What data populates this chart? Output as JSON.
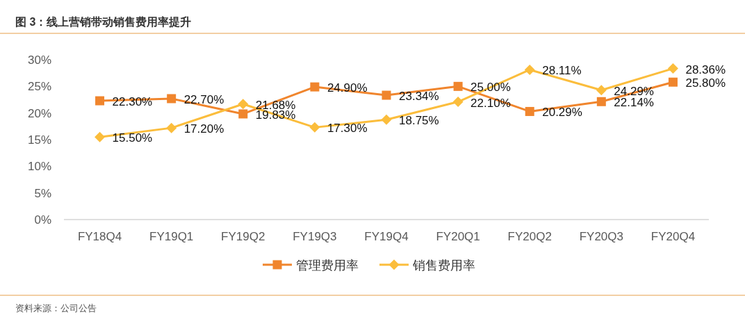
{
  "chart_data": {
    "type": "line",
    "title": "图 3：线上营销带动销售费用率提升",
    "categories": [
      "FY18Q4",
      "FY19Q1",
      "FY19Q2",
      "FY19Q3",
      "FY19Q4",
      "FY20Q1",
      "FY20Q2",
      "FY20Q3",
      "FY20Q4"
    ],
    "ylim": [
      0,
      30
    ],
    "yticks": [
      {
        "value": 0,
        "label": "0%"
      },
      {
        "value": 5,
        "label": "5%"
      },
      {
        "value": 10,
        "label": "10%"
      },
      {
        "value": 15,
        "label": "15%"
      },
      {
        "value": 20,
        "label": "20%"
      },
      {
        "value": 25,
        "label": "25%"
      },
      {
        "value": 30,
        "label": "30%"
      }
    ],
    "legend": "bottom",
    "line_style": "solid",
    "annotations": [
      "资料来源：公司公告"
    ],
    "series": [
      {
        "name": "管理费用率",
        "color": "#f0852d",
        "marker": "square",
        "values": [
          22.3,
          22.7,
          19.83,
          24.9,
          23.34,
          25.0,
          20.29,
          22.14,
          25.8
        ],
        "value_labels": [
          "22.30%",
          "22.70%",
          "19.83%",
          "24.90%",
          "23.34%",
          "25.00%",
          "20.29%",
          "22.14%",
          "25.80%"
        ]
      },
      {
        "name": "销售费用率",
        "color": "#fbbd3c",
        "marker": "diamond",
        "values": [
          15.5,
          17.2,
          21.68,
          17.3,
          18.75,
          22.1,
          28.11,
          24.29,
          28.36
        ],
        "value_labels": [
          "15.50%",
          "17.20%",
          "21.68%",
          "17.30%",
          "18.75%",
          "22.10%",
          "28.11%",
          "24.29%",
          "28.36%"
        ]
      }
    ]
  }
}
